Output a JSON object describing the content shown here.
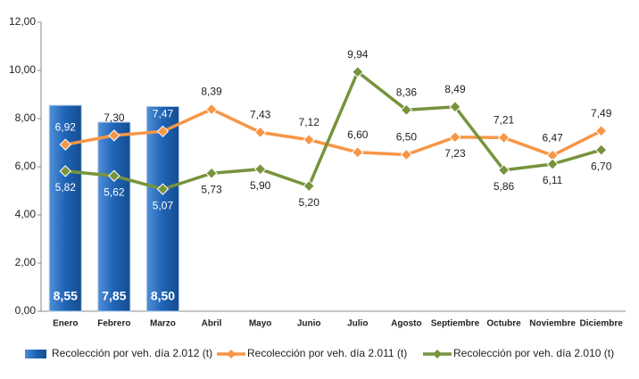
{
  "chart_data": {
    "type": "combo",
    "categories": [
      "Enero",
      "Febrero",
      "Marzo",
      "Abril",
      "Mayo",
      "Junio",
      "Julio",
      "Agosto",
      "Septiembre",
      "Octubre",
      "Noviembre",
      "Diciembre"
    ],
    "series": [
      {
        "name": "Recolección por veh. día 2.012 (t)",
        "type": "bar",
        "color": "#1f63b5",
        "values": [
          8.55,
          7.85,
          8.5,
          null,
          null,
          null,
          null,
          null,
          null,
          null,
          null,
          null
        ],
        "value_labels": [
          "8,55",
          "7,85",
          "8,50",
          null,
          null,
          null,
          null,
          null,
          null,
          null,
          null,
          null
        ]
      },
      {
        "name": "Recolección por veh. día 2.011 (t)",
        "type": "line",
        "color": "#f79646",
        "values": [
          6.92,
          7.3,
          7.47,
          8.39,
          7.43,
          7.12,
          6.6,
          6.5,
          7.23,
          7.21,
          6.47,
          7.49
        ],
        "value_labels": [
          "6,92",
          "7,30",
          "7,47",
          "8,39",
          "7,43",
          "7,12",
          "6,60",
          "6,50",
          "7,23",
          "7,21",
          "6,47",
          "7,49"
        ]
      },
      {
        "name": "Recolección por veh. día 2.010 (t)",
        "type": "line",
        "color": "#77933c",
        "values": [
          5.82,
          5.62,
          5.07,
          5.73,
          5.9,
          5.2,
          9.94,
          8.36,
          8.49,
          5.86,
          6.11,
          6.7
        ],
        "value_labels": [
          "5,82",
          "5,62",
          "5,07",
          "5,73",
          "5,90",
          "5,20",
          "9,94",
          "8,36",
          "8,49",
          "5,86",
          "6,11",
          "6,70"
        ]
      }
    ],
    "ylim": [
      0,
      12
    ],
    "yticks": [
      {
        "value": 0,
        "label": "0,00"
      },
      {
        "value": 2,
        "label": "2,00"
      },
      {
        "value": 4,
        "label": "4,00"
      },
      {
        "value": 6,
        "label": "6,00"
      },
      {
        "value": 8,
        "label": "8,00"
      },
      {
        "value": 10,
        "label": "10,00"
      },
      {
        "value": 12,
        "label": "12,00"
      }
    ],
    "grid": false,
    "legend": "bottom"
  }
}
